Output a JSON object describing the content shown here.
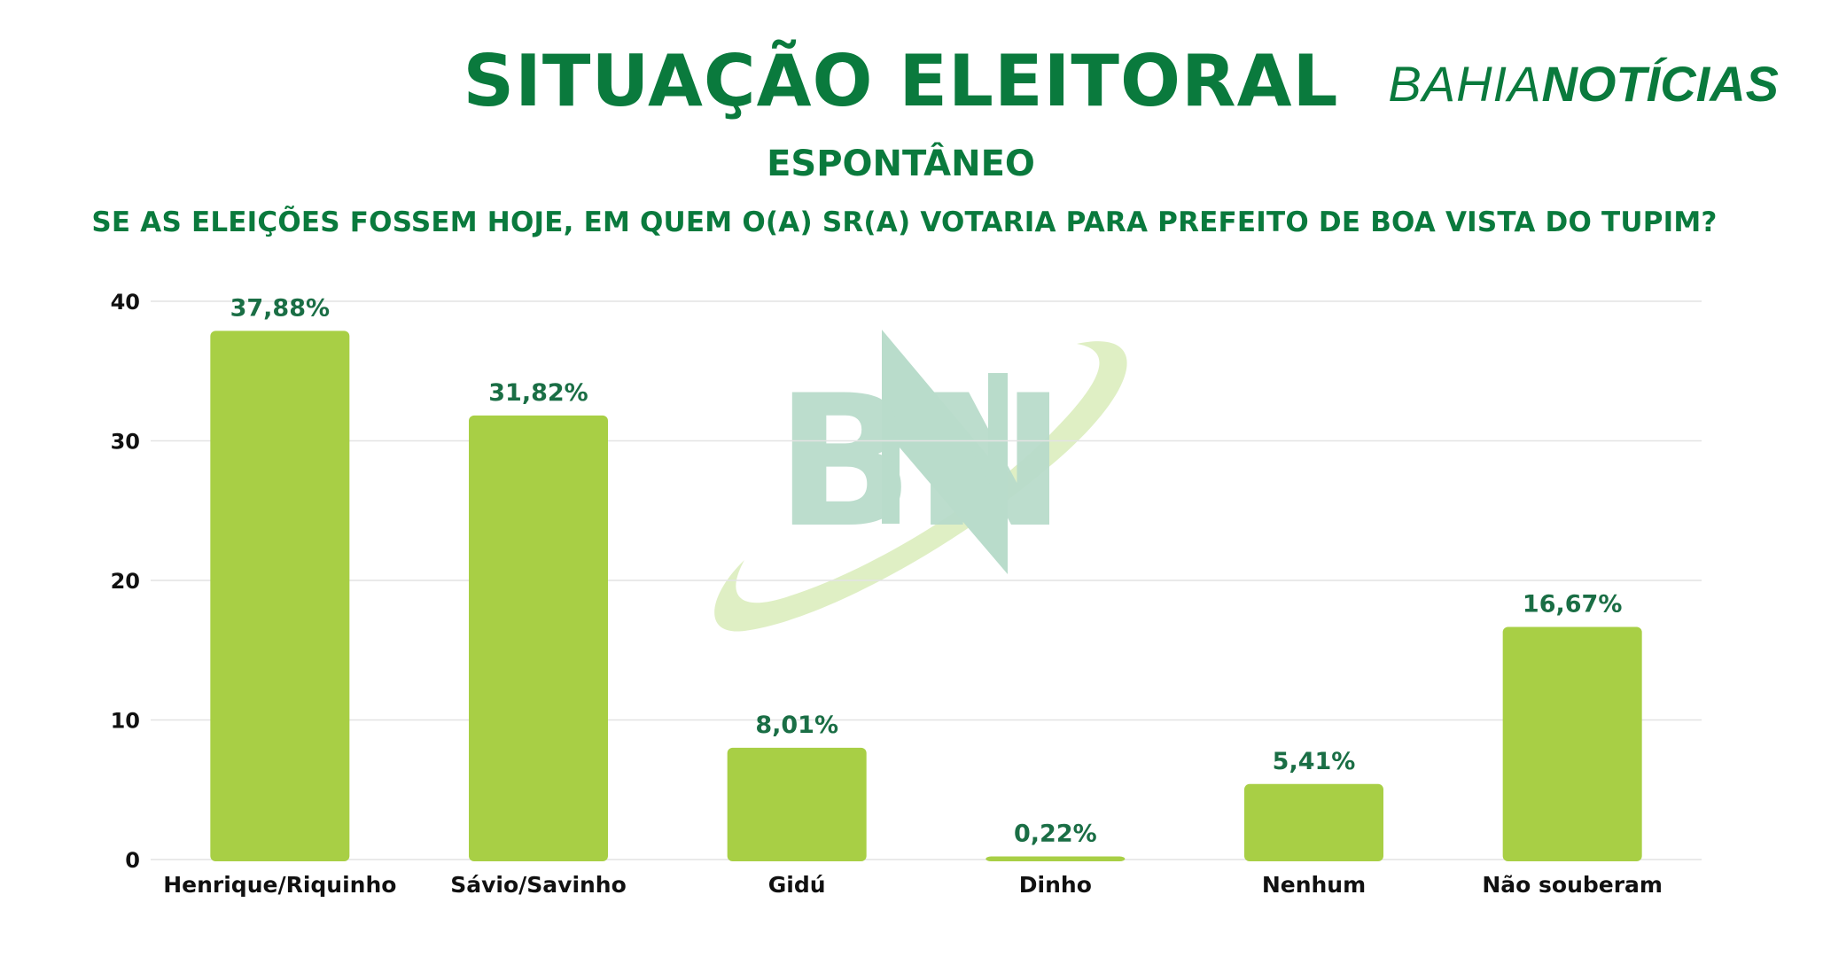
{
  "header": {
    "title": "SITUAÇÃO ELEITORAL",
    "subtitle": "ESPONTÂNEO",
    "question": "SE AS ELEIÇÕES FOSSEM HOJE, EM QUEM O(A) SR(A) VOTARIA PARA PREFEITO DE BOA VISTA DO TUPIM?"
  },
  "logo": {
    "part1": "BAHIA",
    "part2": "NOTÍCIAS",
    "watermark_text": "BN"
  },
  "colors": {
    "brand_green": "#0a7a3d",
    "bar_green": "#a8cf45",
    "label_green": "#1a6e45",
    "grid": "#e3e3e3"
  },
  "chart_data": {
    "type": "bar",
    "categories": [
      "Henrique/Riquinho",
      "Sávio/Savinho",
      "Gidú",
      "Dinho",
      "Nenhum",
      "Não souberam"
    ],
    "values": [
      37.88,
      31.82,
      8.01,
      0.22,
      5.41,
      16.67
    ],
    "data_labels": [
      "37,88%",
      "31,82%",
      "8,01%",
      "0,22%",
      "5,41%",
      "16,67%"
    ],
    "ylim": [
      0,
      40
    ],
    "yticks": [
      0,
      10,
      20,
      30,
      40
    ],
    "grid": true,
    "legend": "none"
  }
}
